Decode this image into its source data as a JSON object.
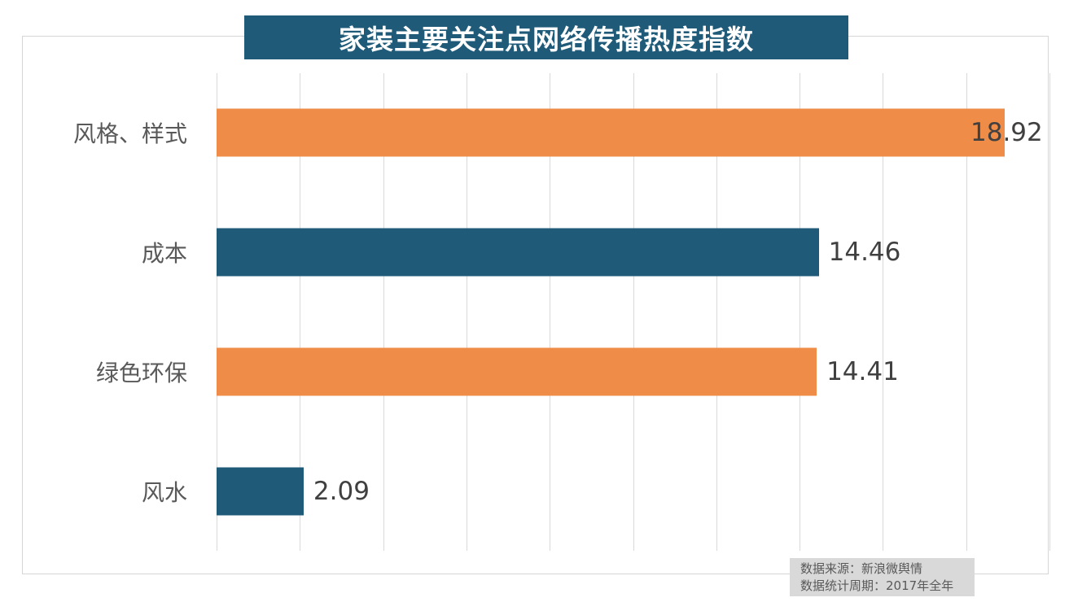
{
  "title": "家装主要关注点网络传播热度指数",
  "colors": {
    "title_bg": "#1f5a78",
    "title_text": "#ffffff",
    "bar_teal": "#1f5a78",
    "bar_orange": "#ee8c48",
    "gridline": "#d9d9d9",
    "frame_border": "#d6d6d6",
    "category_text": "#595959",
    "value_text": "#404040",
    "footer_bg": "#d9d9d9",
    "footer_text": "#595959"
  },
  "chart_data": {
    "type": "bar",
    "orientation": "horizontal",
    "title": "家装主要关注点网络传播热度指数",
    "categories": [
      "风格、样式",
      "成本",
      "绿色环保",
      "风水"
    ],
    "values": [
      18.92,
      14.46,
      14.41,
      2.09
    ],
    "value_labels": [
      "18.92",
      "14.46",
      "14.41",
      "2.09"
    ],
    "bar_colors": [
      "#ee8c48",
      "#1f5a78",
      "#ee8c48",
      "#1f5a78"
    ],
    "xlabel": "",
    "ylabel": "",
    "xlim": [
      0,
      20
    ],
    "grid_ticks": [
      0,
      2,
      4,
      6,
      8,
      10,
      12,
      14,
      16,
      18,
      20
    ],
    "grid": "vertical-only",
    "legend": "none"
  },
  "footer": {
    "source_line": "数据来源：新浪微舆情",
    "period_line": "数据统计周期：2017年全年"
  }
}
